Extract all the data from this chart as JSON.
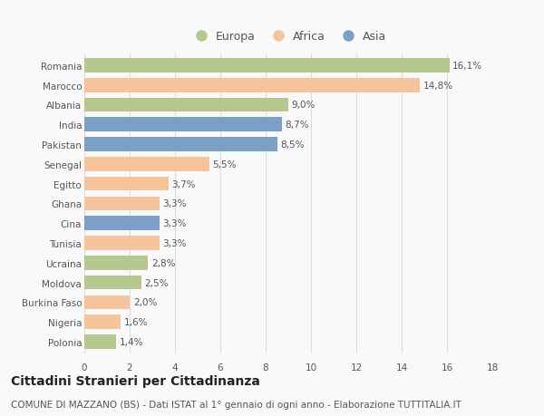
{
  "categories": [
    "Romania",
    "Marocco",
    "Albania",
    "India",
    "Pakistan",
    "Senegal",
    "Egitto",
    "Ghana",
    "Cina",
    "Tunisia",
    "Ucraina",
    "Moldova",
    "Burkina Faso",
    "Nigeria",
    "Polonia"
  ],
  "values": [
    16.1,
    14.8,
    9.0,
    8.7,
    8.5,
    5.5,
    3.7,
    3.3,
    3.3,
    3.3,
    2.8,
    2.5,
    2.0,
    1.6,
    1.4
  ],
  "labels": [
    "16,1%",
    "14,8%",
    "9,0%",
    "8,7%",
    "8,5%",
    "5,5%",
    "3,7%",
    "3,3%",
    "3,3%",
    "3,3%",
    "2,8%",
    "2,5%",
    "2,0%",
    "1,6%",
    "1,4%"
  ],
  "continents": [
    "Europa",
    "Africa",
    "Europa",
    "Asia",
    "Asia",
    "Africa",
    "Africa",
    "Africa",
    "Asia",
    "Africa",
    "Europa",
    "Europa",
    "Africa",
    "Africa",
    "Europa"
  ],
  "colors": {
    "Europa": "#b5c98e",
    "Africa": "#f5c49a",
    "Asia": "#7b9fc7"
  },
  "xlim": [
    0,
    18
  ],
  "xticks": [
    0,
    2,
    4,
    6,
    8,
    10,
    12,
    14,
    16,
    18
  ],
  "title": "Cittadini Stranieri per Cittadinanza",
  "subtitle": "COMUNE DI MAZZANO (BS) - Dati ISTAT al 1° gennaio di ogni anno - Elaborazione TUTTITALIA.IT",
  "background_color": "#f9f9f9",
  "bar_height": 0.72,
  "grid_color": "#dddddd",
  "text_color": "#555555",
  "title_fontsize": 10,
  "subtitle_fontsize": 7.5,
  "label_fontsize": 7.5,
  "tick_fontsize": 7.5,
  "legend_fontsize": 9
}
